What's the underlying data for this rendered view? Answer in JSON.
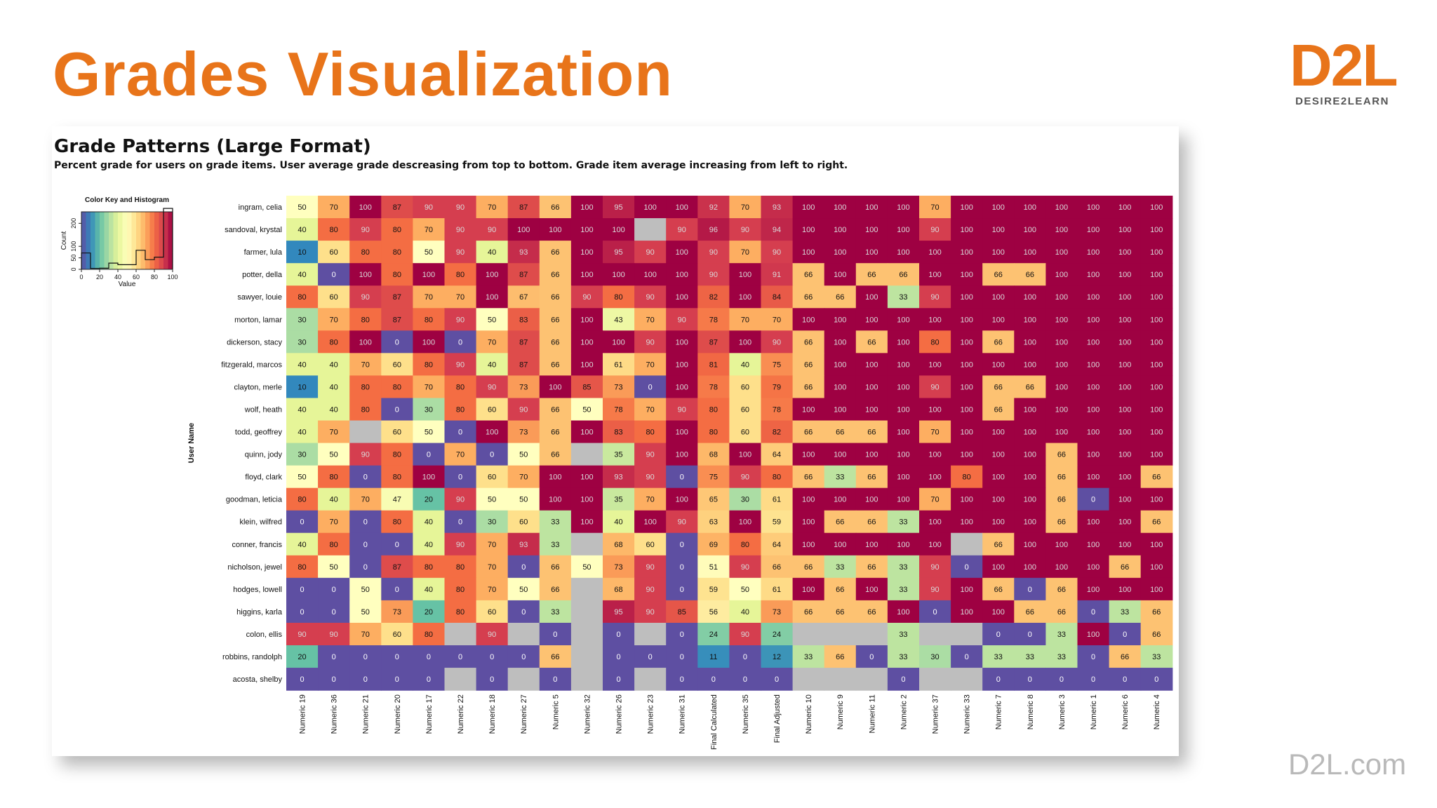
{
  "slide": {
    "title": "Grades Visualization",
    "logo_mark": "D2L",
    "logo_subtitle": "DESIRE2LEARN",
    "footer_url": "D2L.com",
    "accent_color": "#e8741a"
  },
  "chart_data": {
    "type": "heatmap",
    "title": "Grade Patterns (Large Format)",
    "subtitle": "Percent grade for users on grade items. User average grade descreasing from top to bottom. Grade item average increasing from left to right.",
    "ylabel": "User Name",
    "xlabel": "",
    "colorscale": "Spectral (0 = purple/blue, 100 = dark red)",
    "missing_color": "#bebebe",
    "columns": [
      "Numeric 19",
      "Numeric 36",
      "Numeric 21",
      "Numeric 20",
      "Numeric 17",
      "Numeric 22",
      "Numeric 18",
      "Numeric 27",
      "Numeric 5",
      "Numeric 32",
      "Numeric 26",
      "Numeric 23",
      "Numeric 31",
      "Final Calculated",
      "Numeric 35",
      "Final Adjusted",
      "Numeric 10",
      "Numeric 9",
      "Numeric 11",
      "Numeric 2",
      "Numeric 37",
      "Numeric 33",
      "Numeric 7",
      "Numeric 8",
      "Numeric 3",
      "Numeric 1",
      "Numeric 6",
      "Numeric 4"
    ],
    "rows": [
      "ingram, celia",
      "sandoval, krystal",
      "farmer, lula",
      "potter, della",
      "sawyer, louie",
      "morton, lamar",
      "dickerson, stacy",
      "fitzgerald, marcos",
      "clayton, merle",
      "wolf, heath",
      "todd, geoffrey",
      "quinn, jody",
      "floyd, clark",
      "goodman, leticia",
      "klein, wilfred",
      "conner, francis",
      "nicholson, jewel",
      "hodges, lowell",
      "higgins, karla",
      "colon, ellis",
      "robbins, randolph",
      "acosta, shelby"
    ],
    "values": [
      [
        50,
        70,
        100,
        87,
        90,
        90,
        70,
        87,
        66,
        100,
        95,
        100,
        100,
        92,
        70,
        93,
        100,
        100,
        100,
        100,
        70,
        100,
        100,
        100,
        100,
        100,
        100,
        100
      ],
      [
        40,
        80,
        90,
        80,
        70,
        90,
        90,
        100,
        100,
        100,
        100,
        null,
        90,
        96,
        90,
        94,
        100,
        100,
        100,
        100,
        90,
        100,
        100,
        100,
        100,
        100,
        100,
        100
      ],
      [
        10,
        60,
        80,
        80,
        50,
        90,
        40,
        93,
        66,
        100,
        95,
        90,
        100,
        90,
        70,
        90,
        100,
        100,
        100,
        100,
        100,
        100,
        100,
        100,
        100,
        100,
        100,
        100
      ],
      [
        40,
        0,
        100,
        80,
        100,
        80,
        100,
        87,
        66,
        100,
        100,
        100,
        100,
        90,
        100,
        91,
        66,
        100,
        66,
        66,
        100,
        100,
        66,
        66,
        100,
        100,
        100,
        100
      ],
      [
        80,
        60,
        90,
        87,
        70,
        70,
        100,
        67,
        66,
        90,
        80,
        90,
        100,
        82,
        100,
        84,
        66,
        66,
        100,
        33,
        90,
        100,
        100,
        100,
        100,
        100,
        100,
        100
      ],
      [
        30,
        70,
        80,
        87,
        80,
        90,
        50,
        83,
        66,
        100,
        43,
        70,
        90,
        78,
        70,
        70,
        100,
        100,
        100,
        100,
        100,
        100,
        100,
        100,
        100,
        100,
        100,
        100
      ],
      [
        30,
        80,
        100,
        0,
        100,
        0,
        70,
        87,
        66,
        100,
        100,
        90,
        100,
        87,
        100,
        90,
        66,
        100,
        66,
        100,
        80,
        100,
        66,
        100,
        100,
        100,
        100,
        100
      ],
      [
        40,
        40,
        70,
        60,
        80,
        90,
        40,
        87,
        66,
        100,
        61,
        70,
        100,
        81,
        40,
        75,
        66,
        100,
        100,
        100,
        100,
        100,
        100,
        100,
        100,
        100,
        100,
        100
      ],
      [
        10,
        40,
        80,
        80,
        70,
        80,
        90,
        73,
        100,
        85,
        73,
        0,
        100,
        78,
        60,
        79,
        66,
        100,
        100,
        100,
        90,
        100,
        66,
        66,
        100,
        100,
        100,
        100
      ],
      [
        40,
        40,
        80,
        0,
        30,
        80,
        60,
        90,
        66,
        50,
        78,
        70,
        90,
        80,
        60,
        78,
        100,
        100,
        100,
        100,
        100,
        100,
        66,
        100,
        100,
        100,
        100,
        100
      ],
      [
        40,
        70,
        null,
        60,
        50,
        0,
        100,
        73,
        66,
        100,
        83,
        80,
        100,
        80,
        60,
        82,
        66,
        66,
        66,
        100,
        70,
        100,
        100,
        100,
        100,
        100,
        100,
        100
      ],
      [
        30,
        50,
        90,
        80,
        0,
        70,
        0,
        50,
        66,
        null,
        35,
        90,
        100,
        68,
        100,
        64,
        100,
        100,
        100,
        100,
        100,
        100,
        100,
        100,
        66,
        100,
        100,
        100
      ],
      [
        50,
        80,
        0,
        80,
        100,
        0,
        60,
        70,
        100,
        100,
        93,
        90,
        0,
        75,
        90,
        80,
        66,
        33,
        66,
        100,
        100,
        80,
        100,
        100,
        66,
        100,
        100,
        66
      ],
      [
        80,
        40,
        70,
        47,
        20,
        90,
        50,
        50,
        100,
        100,
        35,
        70,
        100,
        65,
        30,
        61,
        100,
        100,
        100,
        100,
        70,
        100,
        100,
        100,
        66,
        0,
        100,
        100
      ],
      [
        0,
        70,
        0,
        80,
        40,
        0,
        30,
        60,
        33,
        100,
        40,
        100,
        90,
        63,
        100,
        59,
        100,
        66,
        66,
        33,
        100,
        100,
        100,
        100,
        66,
        100,
        100,
        66
      ],
      [
        40,
        80,
        0,
        0,
        40,
        90,
        70,
        93,
        33,
        null,
        68,
        60,
        0,
        69,
        80,
        64,
        100,
        100,
        100,
        100,
        100,
        null,
        66,
        100,
        100,
        100,
        100,
        100
      ],
      [
        80,
        50,
        0,
        87,
        80,
        80,
        70,
        0,
        66,
        50,
        73,
        90,
        0,
        51,
        90,
        66,
        66,
        33,
        66,
        33,
        90,
        0,
        100,
        100,
        100,
        100,
        66,
        100
      ],
      [
        0,
        0,
        50,
        0,
        40,
        80,
        70,
        50,
        66,
        null,
        68,
        90,
        0,
        59,
        50,
        61,
        100,
        66,
        100,
        33,
        90,
        100,
        66,
        0,
        66,
        100,
        100,
        100
      ],
      [
        0,
        0,
        50,
        73,
        20,
        80,
        60,
        0,
        33,
        null,
        95,
        90,
        85,
        56,
        40,
        73,
        66,
        66,
        66,
        100,
        0,
        100,
        100,
        66,
        66,
        0,
        33,
        66
      ],
      [
        90,
        90,
        70,
        60,
        80,
        null,
        90,
        null,
        0,
        null,
        0,
        null,
        0,
        24,
        90,
        24,
        null,
        null,
        null,
        33,
        null,
        null,
        0,
        0,
        33,
        100,
        0,
        66
      ],
      [
        20,
        0,
        0,
        0,
        0,
        0,
        0,
        0,
        66,
        null,
        0,
        0,
        0,
        11,
        0,
        12,
        33,
        66,
        0,
        33,
        30,
        0,
        33,
        33,
        33,
        0,
        66,
        33
      ],
      [
        0,
        0,
        0,
        0,
        0,
        null,
        0,
        null,
        0,
        null,
        0,
        null,
        0,
        0,
        0,
        0,
        null,
        null,
        null,
        0,
        null,
        null,
        0,
        0,
        0,
        0,
        0,
        0
      ]
    ],
    "color_key": {
      "title": "Color Key and Histogram",
      "xlabel": "Value",
      "ylabel": "Count",
      "x_ticks": [
        0,
        20,
        40,
        60,
        80,
        100
      ],
      "y_ticks": [
        0,
        50,
        100,
        200
      ]
    }
  }
}
